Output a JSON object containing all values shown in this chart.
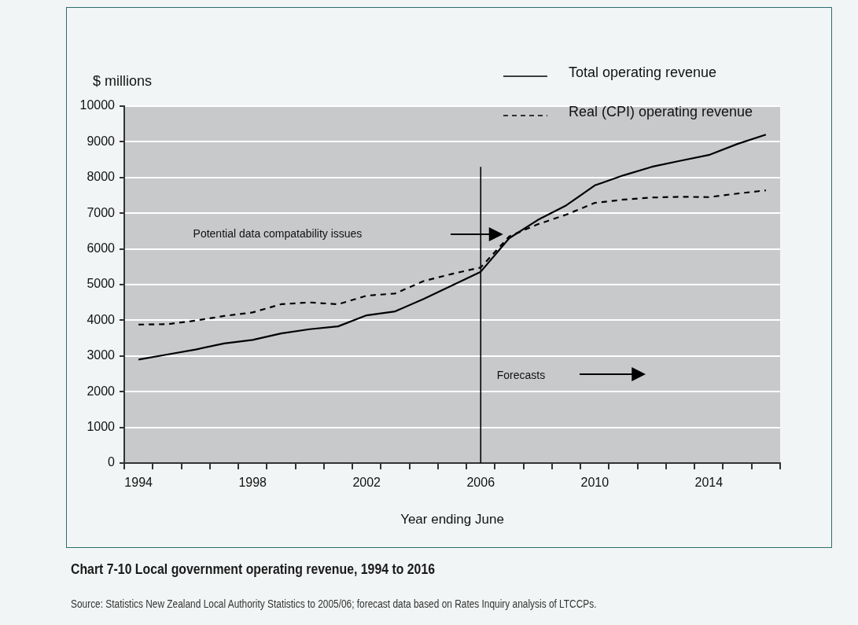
{
  "chart_data": {
    "type": "line",
    "title": "Chart 7-10 Local government operating revenue, 1994 to 2016",
    "xlabel": "Year ending June",
    "ylabel": "$ millions",
    "categories": [
      "1994",
      null,
      null,
      null,
      "1998",
      null,
      null,
      null,
      "2002",
      null,
      null,
      null,
      "2006",
      null,
      null,
      null,
      "2010",
      null,
      null,
      null,
      "2014",
      null,
      null
    ],
    "series": [
      {
        "name": "Total operating revenue",
        "color": "#000000",
        "line_style": "solid",
        "values": [
          2900,
          3040,
          3180,
          3350,
          3450,
          3630,
          3750,
          3830,
          4140,
          4250,
          4600,
          4980,
          5360,
          6300,
          6810,
          7220,
          7780,
          8060,
          8300,
          8470,
          8630,
          8940,
          9200
        ]
      },
      {
        "name": "Real (CPI) operating revenue",
        "color": "#000000",
        "line_style": "dashed",
        "values": [
          3880,
          3890,
          3990,
          4120,
          4220,
          4450,
          4500,
          4450,
          4690,
          4750,
          5100,
          5300,
          5480,
          6350,
          6690,
          6960,
          7290,
          7380,
          7440,
          7460,
          7450,
          7550,
          7640
        ]
      }
    ],
    "ylim": [
      0,
      10000
    ],
    "yticks": [
      0,
      1000,
      2000,
      3000,
      4000,
      5000,
      6000,
      7000,
      8000,
      9000,
      10000
    ],
    "grid": "y",
    "legend": "top right",
    "marker": "none",
    "ref_lines": [
      {
        "axis": "x",
        "value": "2006",
        "color": "#000000"
      }
    ],
    "annotations": [
      "Potential data compatability issues",
      "Forecasts",
      "Source: Statistics New Zealand Local Authority Statistics to 2005/06; forecast data based on Rates Inquiry analysis of LTCCPs."
    ]
  }
}
